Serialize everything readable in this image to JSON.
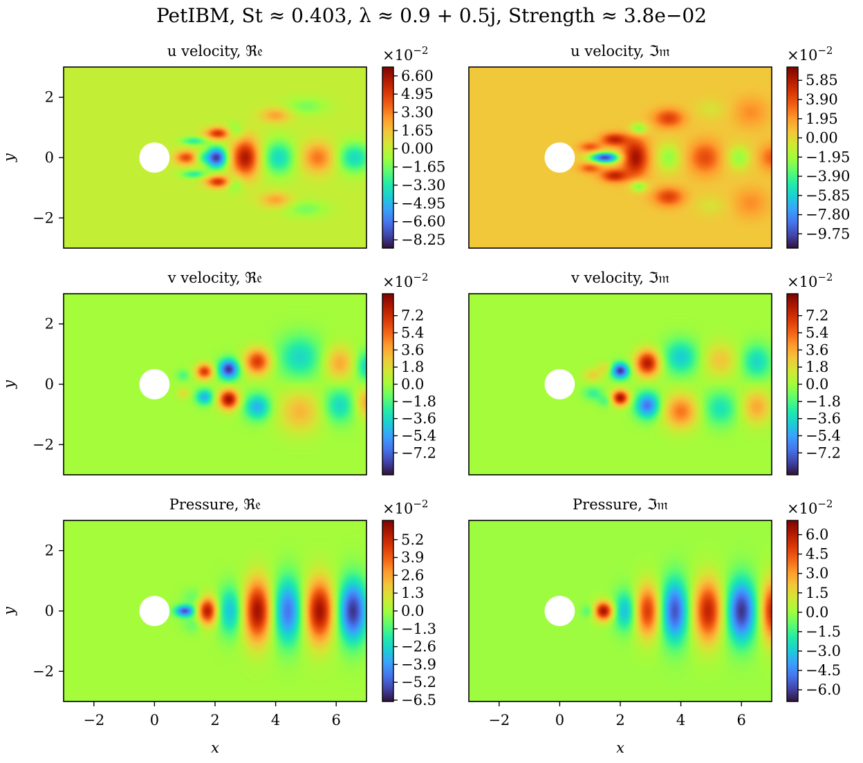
{
  "figure": {
    "title": "PetIBM, St ≈ 0.403, λ ≈ 0.9 + 0.5j, Strength ≈ 3.8e−02"
  },
  "colormap": {
    "name": "turbo",
    "stops": [
      "#30123b",
      "#4145ab",
      "#4675ed",
      "#39a2fc",
      "#1bcfd4",
      "#24eca6",
      "#61fc6c",
      "#a4fc3b",
      "#d1e834",
      "#f3c63a",
      "#fe9b2d",
      "#f36315",
      "#d93806",
      "#b11901",
      "#7a0402"
    ]
  },
  "chart_data": [
    {
      "type": "heatmap",
      "id": "u_re",
      "title": "u velocity, ℜ𝔢",
      "xlabel": "",
      "ylabel": "y",
      "xlim": [
        -3,
        7
      ],
      "ylim": [
        -3,
        3
      ],
      "xticks": [],
      "yticks": [
        "2",
        "0",
        "−2"
      ],
      "cylinder": {
        "center": [
          0,
          0
        ],
        "radius": 0.5
      },
      "colorbar": {
        "exponent": "×10−2",
        "vmin": -9.0,
        "vmax": 7.4,
        "ticks": [
          "6.60",
          "4.95",
          "3.30",
          "1.65",
          "0.00",
          "−1.65",
          "−3.30",
          "−4.95",
          "−6.60",
          "−8.25"
        ]
      },
      "features": [
        {
          "x": 1.05,
          "y": 0.0,
          "sx": 0.26,
          "sy": 0.16,
          "amp": 0.65
        },
        {
          "x": 2.05,
          "y": 0.0,
          "sx": 0.24,
          "sy": 0.24,
          "amp": -0.95
        },
        {
          "x": 1.55,
          "y": 0.0,
          "sx": 0.18,
          "sy": 0.14,
          "amp": -0.25
        },
        {
          "x": 2.1,
          "y": 0.8,
          "sx": 0.28,
          "sy": 0.14,
          "amp": 0.75
        },
        {
          "x": 2.1,
          "y": -0.8,
          "sx": 0.28,
          "sy": 0.14,
          "amp": 0.75
        },
        {
          "x": 1.3,
          "y": 0.55,
          "sx": 0.3,
          "sy": 0.1,
          "amp": -0.35
        },
        {
          "x": 1.3,
          "y": -0.55,
          "sx": 0.3,
          "sy": 0.1,
          "amp": -0.35
        },
        {
          "x": 3.0,
          "y": 0.0,
          "sx": 0.32,
          "sy": 0.45,
          "amp": 0.9
        },
        {
          "x": 2.65,
          "y": 0.85,
          "sx": 0.22,
          "sy": 0.2,
          "amp": -0.25
        },
        {
          "x": 2.65,
          "y": -0.85,
          "sx": 0.22,
          "sy": 0.2,
          "amp": -0.25
        },
        {
          "x": 4.1,
          "y": 0.0,
          "sx": 0.38,
          "sy": 0.4,
          "amp": -0.45
        },
        {
          "x": 4.0,
          "y": 1.4,
          "sx": 0.35,
          "sy": 0.18,
          "amp": 0.35
        },
        {
          "x": 4.0,
          "y": -1.4,
          "sx": 0.35,
          "sy": 0.18,
          "amp": 0.35
        },
        {
          "x": 5.4,
          "y": 0.0,
          "sx": 0.38,
          "sy": 0.35,
          "amp": 0.5
        },
        {
          "x": 6.6,
          "y": 0.0,
          "sx": 0.4,
          "sy": 0.35,
          "amp": -0.45
        },
        {
          "x": 5.0,
          "y": 1.7,
          "sx": 0.5,
          "sy": 0.2,
          "amp": -0.18
        },
        {
          "x": 5.0,
          "y": -1.7,
          "sx": 0.5,
          "sy": 0.2,
          "amp": -0.18
        }
      ]
    },
    {
      "type": "heatmap",
      "id": "u_im",
      "title": "u velocity, ℑ𝔪",
      "xlabel": "",
      "ylabel": "",
      "xlim": [
        -3,
        7
      ],
      "ylim": [
        -3,
        3
      ],
      "xticks": [],
      "yticks": [],
      "cylinder": {
        "center": [
          0,
          0
        ],
        "radius": 0.5
      },
      "colorbar": {
        "exponent": "×10−2",
        "vmin": -11.2,
        "vmax": 7.2,
        "ticks": [
          "5.85",
          "3.90",
          "1.95",
          "0.00",
          "−1.95",
          "−3.90",
          "−5.85",
          "−7.80",
          "−9.75"
        ]
      },
      "features": [
        {
          "x": 1.5,
          "y": 0.0,
          "sx": 0.35,
          "sy": 0.13,
          "amp": -1.0
        },
        {
          "x": 1.0,
          "y": 0.35,
          "sx": 0.25,
          "sy": 0.12,
          "amp": 0.45
        },
        {
          "x": 1.0,
          "y": -0.35,
          "sx": 0.25,
          "sy": 0.12,
          "amp": 0.45
        },
        {
          "x": 1.8,
          "y": 0.6,
          "sx": 0.3,
          "sy": 0.15,
          "amp": 0.7
        },
        {
          "x": 1.8,
          "y": -0.6,
          "sx": 0.3,
          "sy": 0.15,
          "amp": 0.7
        },
        {
          "x": 2.5,
          "y": 0.0,
          "sx": 0.3,
          "sy": 0.45,
          "amp": 0.85
        },
        {
          "x": 2.6,
          "y": 0.95,
          "sx": 0.22,
          "sy": 0.15,
          "amp": -0.4
        },
        {
          "x": 2.6,
          "y": -0.95,
          "sx": 0.22,
          "sy": 0.15,
          "amp": -0.4
        },
        {
          "x": 3.6,
          "y": 0.0,
          "sx": 0.32,
          "sy": 0.35,
          "amp": -0.3
        },
        {
          "x": 3.6,
          "y": 1.3,
          "sx": 0.35,
          "sy": 0.22,
          "amp": 0.55
        },
        {
          "x": 3.6,
          "y": -1.3,
          "sx": 0.35,
          "sy": 0.22,
          "amp": 0.55
        },
        {
          "x": 4.8,
          "y": 0.0,
          "sx": 0.38,
          "sy": 0.38,
          "amp": 0.5
        },
        {
          "x": 5.9,
          "y": 0.0,
          "sx": 0.3,
          "sy": 0.3,
          "amp": -0.3
        },
        {
          "x": 5.0,
          "y": 1.6,
          "sx": 0.4,
          "sy": 0.25,
          "amp": -0.12
        },
        {
          "x": 5.0,
          "y": -1.6,
          "sx": 0.4,
          "sy": 0.25,
          "amp": -0.12
        },
        {
          "x": 6.3,
          "y": 1.5,
          "sx": 0.4,
          "sy": 0.35,
          "amp": 0.25
        },
        {
          "x": 6.3,
          "y": -1.5,
          "sx": 0.4,
          "sy": 0.35,
          "amp": 0.25
        },
        {
          "x": 7.0,
          "y": 0.0,
          "sx": 0.3,
          "sy": 0.3,
          "amp": 0.4
        }
      ],
      "background": 0.08
    },
    {
      "type": "heatmap",
      "id": "v_re",
      "title": "v velocity, ℜ𝔢",
      "xlabel": "",
      "ylabel": "y",
      "xlim": [
        -3,
        7
      ],
      "ylim": [
        -3,
        3
      ],
      "xticks": [],
      "yticks": [
        "2",
        "0",
        "−2"
      ],
      "cylinder": {
        "center": [
          0,
          0
        ],
        "radius": 0.5
      },
      "colorbar": {
        "exponent": "×10−2",
        "vmin": -9.5,
        "vmax": 9.5,
        "ticks": [
          "7.2",
          "5.4",
          "3.6",
          "1.8",
          "0.0",
          "−1.8",
          "−3.6",
          "−5.4",
          "−7.2"
        ]
      },
      "features": [
        {
          "x": 1.65,
          "y": 0.42,
          "sx": 0.2,
          "sy": 0.18,
          "amp": 0.75
        },
        {
          "x": 1.65,
          "y": -0.42,
          "sx": 0.2,
          "sy": 0.18,
          "amp": -0.55
        },
        {
          "x": 0.95,
          "y": 0.3,
          "sx": 0.15,
          "sy": 0.13,
          "amp": -0.2
        },
        {
          "x": 0.95,
          "y": -0.3,
          "sx": 0.15,
          "sy": 0.13,
          "amp": 0.2
        },
        {
          "x": 2.45,
          "y": 0.5,
          "sx": 0.23,
          "sy": 0.23,
          "amp": -0.95
        },
        {
          "x": 2.45,
          "y": -0.5,
          "sx": 0.23,
          "sy": 0.23,
          "amp": 0.95
        },
        {
          "x": 3.4,
          "y": 0.75,
          "sx": 0.3,
          "sy": 0.3,
          "amp": 0.75
        },
        {
          "x": 3.4,
          "y": -0.75,
          "sx": 0.3,
          "sy": 0.3,
          "amp": -0.55
        },
        {
          "x": 4.8,
          "y": 0.9,
          "sx": 0.5,
          "sy": 0.5,
          "amp": -0.4
        },
        {
          "x": 4.8,
          "y": -0.9,
          "sx": 0.5,
          "sy": 0.5,
          "amp": 0.35
        },
        {
          "x": 6.1,
          "y": 0.7,
          "sx": 0.35,
          "sy": 0.4,
          "amp": 0.4
        },
        {
          "x": 6.1,
          "y": -0.7,
          "sx": 0.35,
          "sy": 0.4,
          "amp": -0.4
        },
        {
          "x": 7.0,
          "y": 0.6,
          "sx": 0.25,
          "sy": 0.35,
          "amp": -0.4
        },
        {
          "x": 7.0,
          "y": -0.6,
          "sx": 0.25,
          "sy": 0.35,
          "amp": 0.4
        }
      ]
    },
    {
      "type": "heatmap",
      "id": "v_im",
      "title": "v velocity, ℑ𝔪",
      "xlabel": "",
      "ylabel": "",
      "xlim": [
        -3,
        7
      ],
      "ylim": [
        -3,
        3
      ],
      "xticks": [],
      "yticks": [],
      "cylinder": {
        "center": [
          0,
          0
        ],
        "radius": 0.5
      },
      "colorbar": {
        "exponent": "×10−2",
        "vmin": -9.5,
        "vmax": 9.5,
        "ticks": [
          "7.2",
          "5.4",
          "3.6",
          "1.8",
          "0.0",
          "−1.8",
          "−3.6",
          "−5.4",
          "−7.2"
        ]
      },
      "features": [
        {
          "x": 1.1,
          "y": 0.3,
          "sx": 0.22,
          "sy": 0.16,
          "amp": 0.25
        },
        {
          "x": 1.1,
          "y": -0.3,
          "sx": 0.22,
          "sy": 0.16,
          "amp": -0.25
        },
        {
          "x": 2.0,
          "y": 0.45,
          "sx": 0.2,
          "sy": 0.18,
          "amp": -0.95
        },
        {
          "x": 2.0,
          "y": -0.45,
          "sx": 0.2,
          "sy": 0.18,
          "amp": 0.95
        },
        {
          "x": 1.5,
          "y": 0.55,
          "sx": 0.18,
          "sy": 0.14,
          "amp": 0.2
        },
        {
          "x": 1.5,
          "y": -0.55,
          "sx": 0.18,
          "sy": 0.14,
          "amp": -0.2
        },
        {
          "x": 2.9,
          "y": 0.7,
          "sx": 0.28,
          "sy": 0.3,
          "amp": 0.9
        },
        {
          "x": 2.9,
          "y": -0.7,
          "sx": 0.28,
          "sy": 0.3,
          "amp": -0.75
        },
        {
          "x": 4.0,
          "y": 0.9,
          "sx": 0.4,
          "sy": 0.4,
          "amp": -0.45
        },
        {
          "x": 4.0,
          "y": -0.9,
          "sx": 0.4,
          "sy": 0.4,
          "amp": 0.55
        },
        {
          "x": 5.3,
          "y": 0.8,
          "sx": 0.4,
          "sy": 0.4,
          "amp": 0.3
        },
        {
          "x": 5.3,
          "y": -0.8,
          "sx": 0.4,
          "sy": 0.4,
          "amp": -0.35
        },
        {
          "x": 6.5,
          "y": 0.75,
          "sx": 0.35,
          "sy": 0.4,
          "amp": -0.4
        },
        {
          "x": 6.5,
          "y": -0.75,
          "sx": 0.35,
          "sy": 0.4,
          "amp": 0.4
        }
      ]
    },
    {
      "type": "heatmap",
      "id": "p_re",
      "title": "Pressure, ℜ𝔢",
      "xlabel": "x",
      "ylabel": "y",
      "xlim": [
        -3,
        7
      ],
      "ylim": [
        -3,
        3
      ],
      "xticks": [
        "−2",
        "0",
        "2",
        "4",
        "6"
      ],
      "yticks": [
        "2",
        "0",
        "−2"
      ],
      "cylinder": {
        "center": [
          0,
          0
        ],
        "radius": 0.5
      },
      "colorbar": {
        "exponent": "×10−2",
        "vmin": -6.6,
        "vmax": 6.6,
        "ticks": [
          "5.2",
          "3.9",
          "2.6",
          "1.3",
          "0.0",
          "−1.3",
          "−2.6",
          "−3.9",
          "−5.2",
          "−6.5"
        ]
      },
      "features": [
        {
          "x": 1.0,
          "y": 0.0,
          "sx": 0.22,
          "sy": 0.13,
          "amp": -0.85
        },
        {
          "x": 1.75,
          "y": 0.0,
          "sx": 0.22,
          "sy": 0.32,
          "amp": 0.9
        },
        {
          "x": 2.5,
          "y": 0.0,
          "sx": 0.28,
          "sy": 0.55,
          "amp": -0.5
        },
        {
          "x": 3.4,
          "y": 0.0,
          "sx": 0.32,
          "sy": 0.72,
          "amp": 0.95
        },
        {
          "x": 4.4,
          "y": 0.0,
          "sx": 0.32,
          "sy": 0.75,
          "amp": -0.75
        },
        {
          "x": 5.45,
          "y": 0.0,
          "sx": 0.33,
          "sy": 0.72,
          "amp": 0.95
        },
        {
          "x": 6.55,
          "y": 0.0,
          "sx": 0.33,
          "sy": 0.72,
          "amp": -0.95
        },
        {
          "x": 1.3,
          "y": 0.45,
          "sx": 0.25,
          "sy": 0.2,
          "amp": -0.15
        },
        {
          "x": 1.3,
          "y": -0.45,
          "sx": 0.25,
          "sy": 0.2,
          "amp": -0.15
        }
      ]
    },
    {
      "type": "heatmap",
      "id": "p_im",
      "title": "Pressure, ℑ𝔪",
      "xlabel": "x",
      "ylabel": "",
      "xlim": [
        -3,
        7
      ],
      "ylim": [
        -3,
        3
      ],
      "xticks": [
        "−2",
        "0",
        "2",
        "4",
        "6"
      ],
      "yticks": [],
      "cylinder": {
        "center": [
          0,
          0
        ],
        "radius": 0.5
      },
      "colorbar": {
        "exponent": "×10−2",
        "vmin": -6.9,
        "vmax": 7.1,
        "ticks": [
          "6.0",
          "4.5",
          "3.0",
          "1.5",
          "0.0",
          "−1.5",
          "−3.0",
          "−4.5",
          "−6.0"
        ]
      },
      "features": [
        {
          "x": 1.45,
          "y": 0.0,
          "sx": 0.22,
          "sy": 0.22,
          "amp": 0.95
        },
        {
          "x": 0.95,
          "y": 0.0,
          "sx": 0.15,
          "sy": 0.15,
          "amp": -0.2
        },
        {
          "x": 2.15,
          "y": 0.0,
          "sx": 0.25,
          "sy": 0.45,
          "amp": -0.5
        },
        {
          "x": 2.9,
          "y": 0.0,
          "sx": 0.28,
          "sy": 0.6,
          "amp": 0.75
        },
        {
          "x": 3.8,
          "y": 0.0,
          "sx": 0.3,
          "sy": 0.72,
          "amp": -0.85
        },
        {
          "x": 4.9,
          "y": 0.0,
          "sx": 0.33,
          "sy": 0.72,
          "amp": 0.85
        },
        {
          "x": 6.0,
          "y": 0.0,
          "sx": 0.33,
          "sy": 0.72,
          "amp": -0.95
        },
        {
          "x": 7.0,
          "y": 0.0,
          "sx": 0.25,
          "sy": 0.7,
          "amp": 0.8
        }
      ]
    }
  ]
}
